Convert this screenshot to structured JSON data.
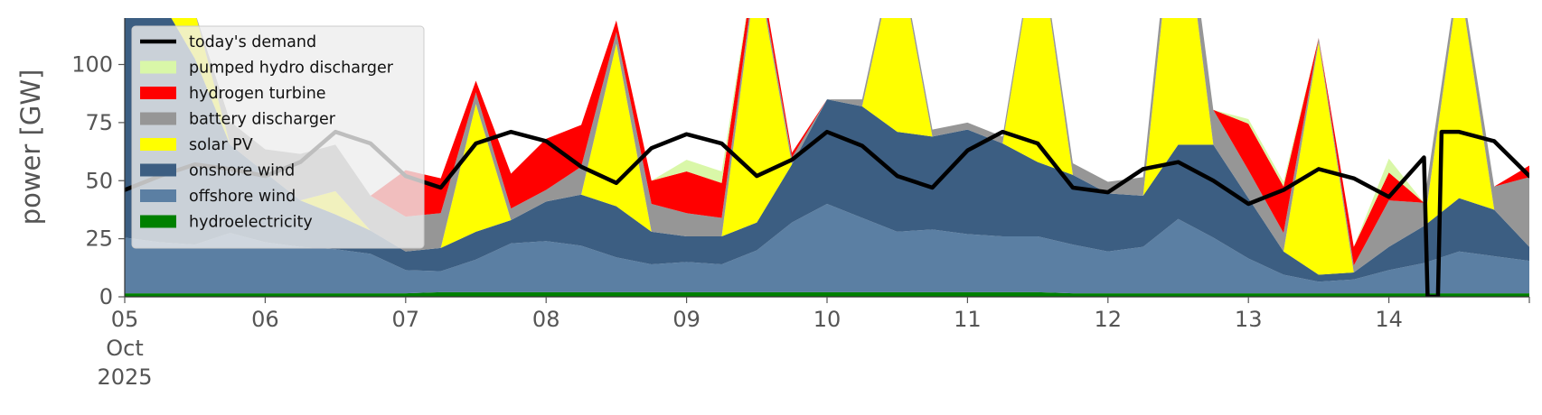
{
  "chart_data": {
    "type": "area",
    "ylabel": "power [GW]",
    "ylim": [
      0,
      120
    ],
    "xlim": [
      "2025-10-05T00:00",
      "2025-10-15T00:00"
    ],
    "grid": false,
    "legend_position": "upper-left",
    "x_tick_labels": [
      {
        "date": "2025-10-05",
        "lines": [
          "05",
          "Oct",
          "2025"
        ]
      },
      {
        "date": "2025-10-06",
        "lines": [
          "06"
        ]
      },
      {
        "date": "2025-10-07",
        "lines": [
          "07"
        ]
      },
      {
        "date": "2025-10-08",
        "lines": [
          "08"
        ]
      },
      {
        "date": "2025-10-09",
        "lines": [
          "09"
        ]
      },
      {
        "date": "2025-10-10",
        "lines": [
          "10"
        ]
      },
      {
        "date": "2025-10-11",
        "lines": [
          "11"
        ]
      },
      {
        "date": "2025-10-12",
        "lines": [
          "12"
        ]
      },
      {
        "date": "2025-10-13",
        "lines": [
          "13"
        ]
      },
      {
        "date": "2025-10-14",
        "lines": [
          "14"
        ]
      }
    ],
    "y_ticks": [
      0,
      25,
      50,
      75,
      100
    ],
    "x": [
      "2025-10-05 00:00",
      "2025-10-05 06:00",
      "2025-10-05 12:00",
      "2025-10-05 18:00",
      "2025-10-06 00:00",
      "2025-10-06 06:00",
      "2025-10-06 12:00",
      "2025-10-06 18:00",
      "2025-10-07 00:00",
      "2025-10-07 06:00",
      "2025-10-07 12:00",
      "2025-10-07 18:00",
      "2025-10-08 00:00",
      "2025-10-08 06:00",
      "2025-10-08 12:00",
      "2025-10-08 18:00",
      "2025-10-09 00:00",
      "2025-10-09 06:00",
      "2025-10-09 12:00",
      "2025-10-09 18:00",
      "2025-10-10 00:00",
      "2025-10-10 06:00",
      "2025-10-10 12:00",
      "2025-10-10 18:00",
      "2025-10-11 00:00",
      "2025-10-11 06:00",
      "2025-10-11 12:00",
      "2025-10-11 18:00",
      "2025-10-12 00:00",
      "2025-10-12 06:00",
      "2025-10-12 12:00",
      "2025-10-12 18:00",
      "2025-10-13 00:00",
      "2025-10-13 06:00",
      "2025-10-13 12:00",
      "2025-10-13 18:00",
      "2025-10-14 00:00",
      "2025-10-14 06:00",
      "2025-10-14 12:00",
      "2025-10-14 18:00",
      "2025-10-15 00:00"
    ],
    "series": [
      {
        "name": "hydroelectricity",
        "color": "#008000",
        "values": [
          1.5,
          1.5,
          1.5,
          1.5,
          1.5,
          1.5,
          1.5,
          1.5,
          1.5,
          2,
          2,
          2,
          2,
          2,
          2,
          2,
          2,
          2,
          2,
          2,
          2,
          2,
          2,
          2,
          2,
          2,
          2,
          1.5,
          1.5,
          1.5,
          1.5,
          1.5,
          1.5,
          1.5,
          1.5,
          1.5,
          1.5,
          1.5,
          1.5,
          1.5,
          1.5
        ]
      },
      {
        "name": "offshore wind",
        "color": "#5b7fa3",
        "values": [
          24,
          22,
          21,
          26,
          22,
          20,
          19,
          17,
          10,
          9,
          14,
          21,
          22,
          20,
          15,
          12,
          13,
          12,
          18,
          30,
          38,
          32,
          26,
          27,
          25,
          24,
          24,
          21,
          18,
          20,
          32,
          24,
          15,
          8,
          5,
          6,
          10,
          13,
          18,
          16,
          14
        ]
      },
      {
        "name": "onshore wind",
        "color": "#3c5e82",
        "values": [
          110,
          105,
          80,
          38,
          30,
          20,
          15,
          10,
          8,
          10,
          12,
          10,
          17,
          22,
          22,
          14,
          11,
          12,
          12,
          25,
          45,
          48,
          43,
          40,
          45,
          40,
          32,
          30,
          25,
          22,
          32,
          40,
          26,
          10,
          3,
          3,
          10,
          16,
          23,
          20,
          6
        ]
      },
      {
        "name": "solar PV",
        "color": "#ffff00",
        "values": [
          0,
          0,
          20,
          0,
          0,
          0,
          10,
          0,
          0,
          0,
          55,
          0,
          0,
          0,
          70,
          0,
          0,
          0,
          110,
          0,
          0,
          0,
          80,
          0,
          0,
          0,
          100,
          0,
          0,
          0,
          120,
          0,
          0,
          0,
          100,
          0,
          0,
          0,
          95,
          0,
          0
        ]
      },
      {
        "name": "battery discharger",
        "color": "#969696",
        "values": [
          0,
          0,
          0,
          10,
          10,
          20,
          20,
          15,
          15,
          15,
          5,
          5,
          5,
          12,
          5,
          12,
          10,
          8,
          3,
          3,
          0,
          3,
          3,
          3,
          3,
          3,
          3,
          5,
          5,
          8,
          10,
          15,
          12,
          8,
          2,
          3,
          20,
          10,
          5,
          10,
          30
        ]
      },
      {
        "name": "hydrogen turbine",
        "color": "#ff0000",
        "values": [
          0,
          0,
          0,
          0,
          0,
          0,
          0,
          0,
          20,
          15,
          5,
          15,
          22,
          18,
          5,
          10,
          18,
          15,
          5,
          2,
          0,
          0,
          0,
          0,
          0,
          0,
          0,
          0,
          0,
          0,
          0,
          0,
          20,
          20,
          0,
          8,
          12,
          0,
          0,
          0,
          5
        ]
      },
      {
        "name": "pumped hydro discharger",
        "color": "#d9f7a8",
        "values": [
          0,
          0,
          0,
          0,
          0,
          0,
          0,
          0,
          0,
          0,
          0,
          0,
          0,
          0,
          0,
          0,
          5,
          5,
          0,
          0,
          0,
          0,
          0,
          0,
          0,
          0,
          0,
          0,
          0,
          0,
          0,
          0,
          2,
          2,
          0,
          0,
          6,
          0,
          0,
          0,
          0
        ]
      }
    ],
    "demand": {
      "name": "today's demand",
      "color": "#000000",
      "values": [
        46,
        52,
        57,
        55,
        52,
        58,
        71,
        66,
        52,
        47,
        66,
        71,
        67,
        56,
        49,
        64,
        70,
        66,
        52,
        59,
        71,
        65,
        52,
        47,
        63,
        71,
        66,
        47,
        45,
        55,
        58,
        50,
        40,
        46,
        55,
        51,
        43,
        60,
        71,
        67,
        52
      ]
    },
    "demand_dip": {
      "x_start": "2025-10-14 06:00",
      "x_end": "2025-10-14 09:00",
      "value": 0
    }
  }
}
